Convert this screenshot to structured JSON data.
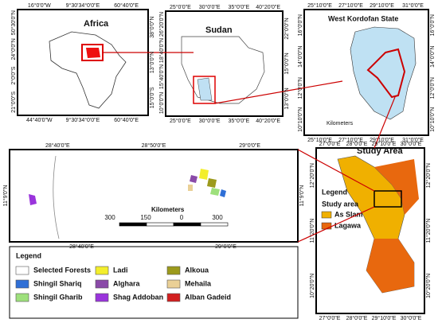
{
  "africa": {
    "title": "Africa",
    "top": [
      "16°0'0\"W",
      "9°30'34°0'0\"E",
      "60°40'0\"E"
    ],
    "bottom": [
      "44°40'0\"W",
      "9°30'34°0'0\"E",
      "60°40'0\"E"
    ],
    "left": [
      "50°30'0\"N",
      "24°0'0\"N",
      "2°0'0\"S",
      "21°0'0\"S"
    ],
    "right": [
      "38°0'0\"N",
      "13°0'0\"N",
      "15°0'0\"S"
    ]
  },
  "sudan": {
    "title": "Sudan",
    "top": [
      "25°0'0\"E",
      "30°0'0\"E",
      "35°0'0\"E",
      "40°20'0\"E"
    ],
    "bottom": [
      "25°0'0\"E",
      "30°0'0\"E",
      "35°0'0\"E",
      "40°20'0\"E"
    ],
    "left": [
      "26°20'0\"N",
      "18°40'0\"N",
      "15°40'0\"N",
      "10°0'0\"N"
    ],
    "right": [
      "22°0'0\"N",
      "15°0'0\"N",
      "13°0'0\"N"
    ]
  },
  "kordofan": {
    "title": "West Kordofan State",
    "scale": "Kilometers",
    "top": [
      "25°10'0\"E",
      "27°10'0\"E",
      "29°10'0\"E",
      "31°0'0\"E"
    ],
    "bottom": [
      "25°10'0\"E",
      "27°10'0\"E",
      "29°10'0\"E",
      "31°0'0\"E"
    ],
    "left": [
      "16°0'0\"N",
      "14°0'0\"N",
      "12°0'0\"N",
      "10°10'0\"N"
    ],
    "right": [
      "16°0'0\"N",
      "14°0'0\"N",
      "12°0'0\"N",
      "10°10'0\"N"
    ]
  },
  "study": {
    "title": "Study Area",
    "top": [
      "27°0'0\"E",
      "28°0'0\"E",
      "29°10'0\"E",
      "30°0'0\"E"
    ],
    "bottom": [
      "27°0'0\"E",
      "28°0'0\"E",
      "29°10'0\"E",
      "30°0'0\"E"
    ],
    "left": [
      "12°20'0\"N",
      "11°20'0\"N",
      "10°20'0\"N"
    ],
    "right": [
      "12°20'0\"N",
      "11°20'0\"N",
      "10°20'0\"N"
    ],
    "legend": {
      "title": "Legend",
      "area": "Study area",
      "items": [
        {
          "label": "As Slam",
          "color": "#f0b000"
        },
        {
          "label": "Lagawa",
          "color": "#e8680e"
        }
      ]
    }
  },
  "detail": {
    "top": [
      "28°40'0\"E",
      "28°50'0\"E",
      "29°0'0\"E"
    ],
    "bottom": [
      "28°40'0\"E",
      "29°0'0\"E"
    ],
    "left": [
      "11°9'0\"N"
    ],
    "right": [
      "11°9'0\"N"
    ],
    "scale": {
      "title": "Kilometers",
      "ticks": [
        "300",
        "150",
        "0",
        "300"
      ]
    }
  },
  "legend": {
    "title": "Legend",
    "items": [
      {
        "label": "Selected Forests",
        "color": "#ffffff"
      },
      {
        "label": "Shingil Shariq",
        "color": "#2f6fd6"
      },
      {
        "label": "Shingil Gharib",
        "color": "#9ee07c"
      },
      {
        "label": "Ladi",
        "color": "#f3ee2c"
      },
      {
        "label": "Alghara",
        "color": "#8a4aa8"
      },
      {
        "label": "Shag Addoban",
        "color": "#9a34dc"
      },
      {
        "label": "Alkoua",
        "color": "#9c9a1c"
      },
      {
        "label": "Mehaila",
        "color": "#ead096"
      },
      {
        "label": "Alban Gadeid",
        "color": "#d21f1f"
      }
    ]
  }
}
